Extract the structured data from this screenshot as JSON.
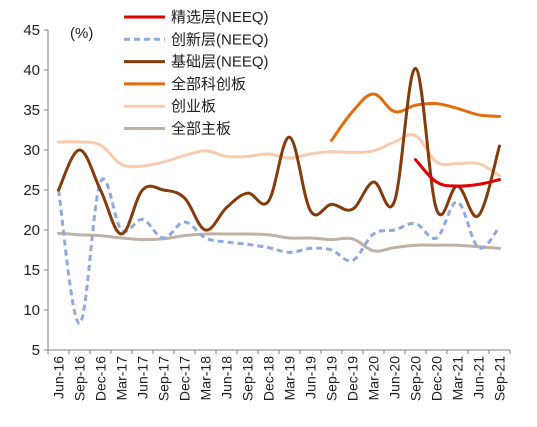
{
  "chart_data": {
    "type": "line",
    "ylabel": "(%)",
    "ylim": [
      5,
      45
    ],
    "yticks": [
      "5",
      "10",
      "15",
      "20",
      "25",
      "30",
      "35",
      "40",
      "45"
    ],
    "categories": [
      "Jun-16",
      "Sep-16",
      "Dec-16",
      "Mar-17",
      "Jun-17",
      "Sep-17",
      "Dec-17",
      "Mar-18",
      "Jun-18",
      "Sep-18",
      "Dec-18",
      "Mar-19",
      "Jun-19",
      "Sep-19",
      "Dec-19",
      "Mar-20",
      "Jun-20",
      "Sep-20",
      "Dec-20",
      "Mar-21",
      "Jun-21",
      "Sep-21"
    ],
    "grid": false,
    "legend_position": "top-right",
    "series": [
      {
        "name": "精选层(NEEQ)",
        "color": "#e00000",
        "dash": "solid",
        "values": [
          null,
          null,
          null,
          null,
          null,
          null,
          null,
          null,
          null,
          null,
          null,
          null,
          null,
          null,
          null,
          null,
          null,
          28.8,
          26.0,
          25.5,
          25.7,
          26.3
        ]
      },
      {
        "name": "创新层(NEEQ)",
        "color": "#8faadc",
        "dash": "dashed",
        "values": [
          25.0,
          8.3,
          26.0,
          20.0,
          21.3,
          19.0,
          21.0,
          19.0,
          18.5,
          18.2,
          17.8,
          17.2,
          17.7,
          17.5,
          16.2,
          19.5,
          20.0,
          20.8,
          19.0,
          23.5,
          17.8,
          20.4
        ]
      },
      {
        "name": "基础层(NEEQ)",
        "color": "#843c0c",
        "dash": "solid",
        "values": [
          25.0,
          30.0,
          25.0,
          19.5,
          25.0,
          25.0,
          24.0,
          20.0,
          22.8,
          24.6,
          23.6,
          31.6,
          22.4,
          23.2,
          22.6,
          26.0,
          23.6,
          40.2,
          22.6,
          25.5,
          21.8,
          30.5
        ]
      },
      {
        "name": "全部科创板",
        "color": "#e46c0a",
        "dash": "solid",
        "values": [
          null,
          null,
          null,
          null,
          null,
          null,
          null,
          null,
          null,
          null,
          null,
          null,
          null,
          31.2,
          34.8,
          37.0,
          34.8,
          35.6,
          35.8,
          35.2,
          34.4,
          34.2
        ]
      },
      {
        "name": "创业板",
        "color": "#f8cbad",
        "dash": "solid",
        "values": [
          31.0,
          31.0,
          30.6,
          28.2,
          28.0,
          28.5,
          29.3,
          29.9,
          29.2,
          29.2,
          29.5,
          29.0,
          29.5,
          29.8,
          29.7,
          29.9,
          31.0,
          31.8,
          28.5,
          28.3,
          28.3,
          26.8
        ]
      },
      {
        "name": "全部主板",
        "color": "#c0b1a7",
        "dash": "solid",
        "values": [
          19.6,
          19.4,
          19.3,
          19.0,
          18.8,
          18.9,
          19.3,
          19.5,
          19.5,
          19.5,
          19.4,
          19.0,
          19.0,
          18.8,
          18.9,
          17.4,
          17.8,
          18.1,
          18.1,
          18.1,
          17.9,
          17.7
        ]
      }
    ]
  }
}
